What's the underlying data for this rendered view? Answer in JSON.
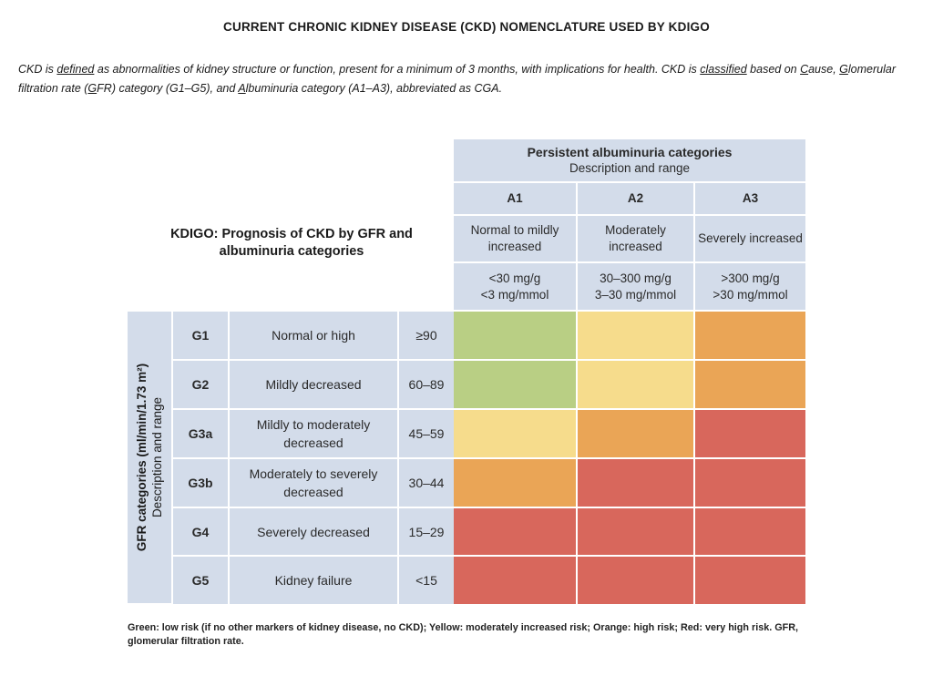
{
  "title": "CURRENT CHRONIC KIDNEY DISEASE (CKD) NOMENCLATURE USED BY KDIGO",
  "intro": {
    "p1": "CKD is ",
    "defined": "defined",
    "p2": " as abnormalities of kidney structure or function, present for a minimum of 3 months, with implications for health. CKD is ",
    "classified": "classified",
    "p3": " based on ",
    "c": "C",
    "cause_rest": "ause, ",
    "g": "G",
    "glom_rest": "lomerular filtration rate (",
    "gfr_g": "G",
    "gfr_rest": "FR) category (G1–G5), and ",
    "a": "A",
    "alb_rest": "lbuminuria category (A1–A3), abbreviated as CGA."
  },
  "prognosis_title": "KDIGO: Prognosis of CKD by GFR and albuminuria categories",
  "albuminuria": {
    "heading": "Persistent albuminuria categories",
    "subheading": "Description and range",
    "columns": [
      {
        "code": "A1",
        "desc": "Normal to mildly increased",
        "range1": "<30 mg/g",
        "range2": "<3 mg/mmol"
      },
      {
        "code": "A2",
        "desc": "Moderately increased",
        "range1": "30–300 mg/g",
        "range2": "3–30 mg/mmol"
      },
      {
        "code": "A3",
        "desc": "Severely increased",
        "range1": ">300 mg/g",
        "range2": ">30 mg/mmol"
      }
    ]
  },
  "gfr": {
    "axis_title": "GFR categories (ml/min/1.73 m²)",
    "axis_sub": "Description and range",
    "rows": [
      {
        "code": "G1",
        "desc": "Normal or high",
        "range": "≥90",
        "risk": [
          "low",
          "moderate",
          "high"
        ]
      },
      {
        "code": "G2",
        "desc": "Mildly decreased",
        "range": "60–89",
        "risk": [
          "low",
          "moderate",
          "high"
        ]
      },
      {
        "code": "G3a",
        "desc": "Mildly to moderately decreased",
        "range": "45–59",
        "risk": [
          "moderate",
          "high",
          "very_high"
        ]
      },
      {
        "code": "G3b",
        "desc": "Moderately to severely decreased",
        "range": "30–44",
        "risk": [
          "high",
          "very_high",
          "very_high"
        ]
      },
      {
        "code": "G4",
        "desc": "Severely decreased",
        "range": "15–29",
        "risk": [
          "very_high",
          "very_high",
          "very_high"
        ]
      },
      {
        "code": "G5",
        "desc": "Kidney failure",
        "range": "<15",
        "risk": [
          "very_high",
          "very_high",
          "very_high"
        ]
      }
    ]
  },
  "risk_colors": {
    "low": "#b9cf84",
    "moderate": "#f6dc8c",
    "high": "#eaa556",
    "very_high": "#d8675c"
  },
  "footnote": "Green: low risk (if no other markers of kidney disease, no CKD); Yellow: moderately increased risk; Orange: high risk; Red: very high risk. GFR, glomerular filtration rate."
}
